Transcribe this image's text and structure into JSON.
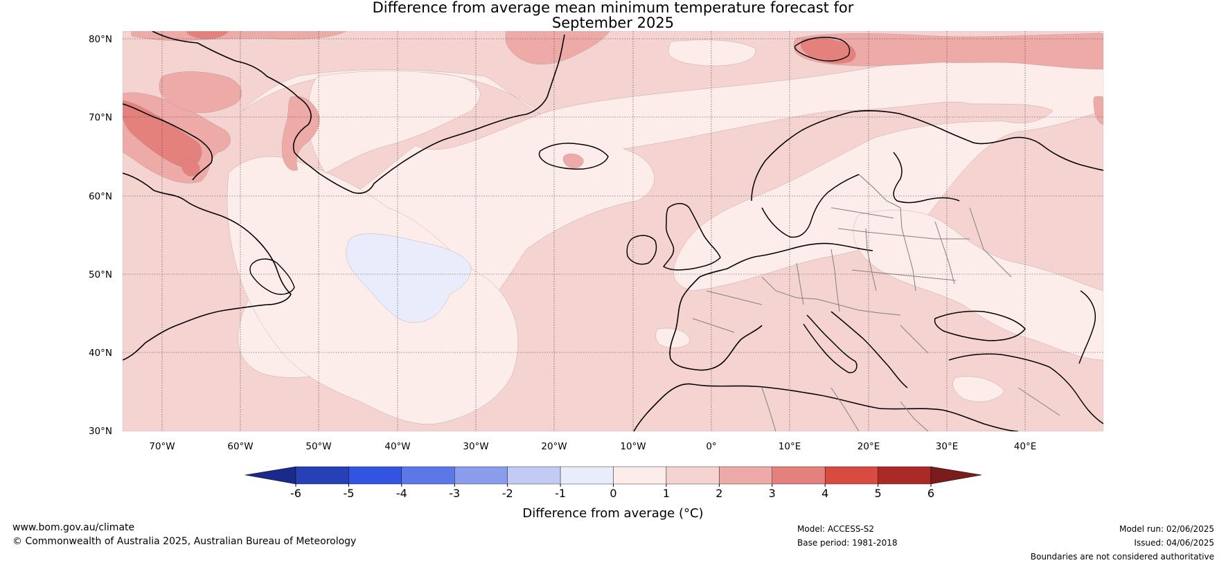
{
  "title_line1": "Difference from average mean minimum temperature forecast for",
  "title_line2": "September 2025",
  "lat_labels": [
    "80°N",
    "70°N",
    "60°N",
    "50°N",
    "40°N",
    "30°N"
  ],
  "lon_labels": [
    "70°W",
    "60°W",
    "50°W",
    "40°W",
    "30°W",
    "20°W",
    "10°W",
    "0°",
    "10°E",
    "20°E",
    "30°E",
    "40°E"
  ],
  "colorbar": {
    "ticks": [
      "-6",
      "-5",
      "-4",
      "-3",
      "-2",
      "-1",
      "0",
      "1",
      "2",
      "3",
      "4",
      "5",
      "6"
    ],
    "colors": [
      "#1a2a8a",
      "#2640b8",
      "#3354e0",
      "#5b78e6",
      "#8a9ded",
      "#c2cbf4",
      "#e8ecfb",
      "#fcecea",
      "#f5d3d1",
      "#edaaa7",
      "#e5817c",
      "#d94a40",
      "#ab2a25",
      "#7a1c1b"
    ],
    "label": "Difference from average (°C)"
  },
  "map_colors": {
    "band_0_1": "#fcecea",
    "band_1_2": "#f5d3d1",
    "band_2_3": "#edaaa7",
    "band_3_4": "#e5817c",
    "band_m1_0": "#e8ecfb",
    "coast": "#000000",
    "border": "#808080"
  },
  "footer": {
    "website": "www.bom.gov.au/climate",
    "copyright": "© Commonwealth of Australia 2025, Australian Bureau of Meteorology",
    "model": "Model: ACCESS-S2",
    "base_period": "Base period: 1981-2018",
    "model_run": "Model run: 02/06/2025",
    "issued": "Issued: 04/06/2025",
    "disclaimer": "Boundaries are not considered authoritative"
  }
}
